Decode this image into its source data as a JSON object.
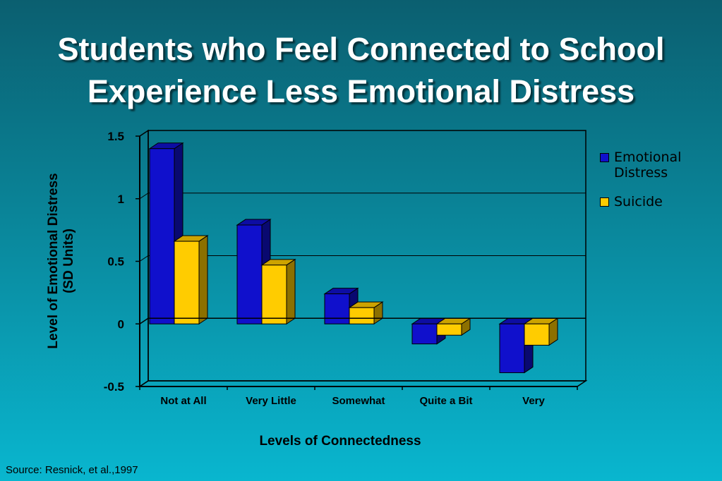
{
  "slide": {
    "title_line1": "Students who Feel Connected to School",
    "title_line2": "Experience Less Emotional Distress",
    "source": "Source: Resnick, et al.,1997"
  },
  "chart_data": {
    "type": "bar",
    "categories": [
      "Not at All",
      "Very Little",
      "Somewhat",
      "Quite a Bit",
      "Very"
    ],
    "series": [
      {
        "name": "Emotional Distress",
        "values": [
          1.4,
          0.79,
          0.24,
          -0.16,
          -0.39
        ],
        "color": "#1010cc"
      },
      {
        "name": "Suicide",
        "values": [
          0.66,
          0.47,
          0.13,
          -0.09,
          -0.17
        ],
        "color": "#ffcc00"
      }
    ],
    "ylabel_line1": "Level of Emotional Distress",
    "ylabel_line2": "(SD Units)",
    "xlabel": "Levels of Connectedness",
    "ylim": [
      -0.5,
      1.5
    ],
    "yticks": [
      "1.5",
      "1",
      "0.5",
      "0",
      "-0.5"
    ],
    "gridlines": true,
    "legend_position": "right"
  }
}
